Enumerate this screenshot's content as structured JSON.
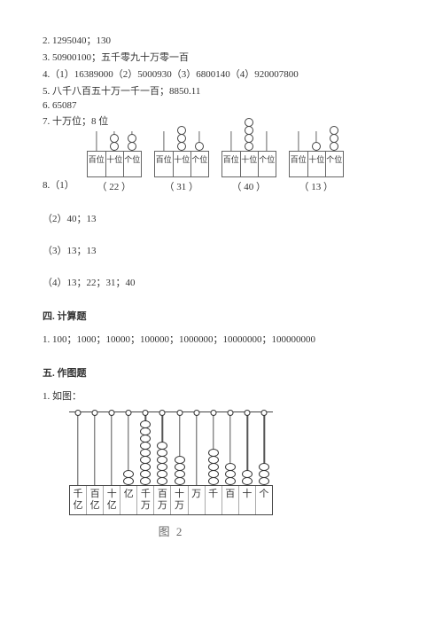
{
  "answers": {
    "l2": "2. 1295040；130",
    "l3": "3. 50900100；五千零九十万零一百",
    "l4": "4.（1）16389000（2）5000930（3）6800140（4）920007800",
    "l5": "5. 八千八百五十万一千一百；8850.11",
    "l6": "6. 65087",
    "l7": "7. 十万位；8 位",
    "l8_prefix": "8.（1）",
    "l8_sub2": "（2）40；13",
    "l8_sub3": "（3）13；13",
    "l8_sub4": "（4）13；22；31；40"
  },
  "abaci": [
    {
      "caption": "（ 22 ）",
      "cols": [
        {
          "label": "百位",
          "beads": 0
        },
        {
          "label": "十位",
          "beads": 2
        },
        {
          "label": "个位",
          "beads": 2
        }
      ]
    },
    {
      "caption": "（ 31 ）",
      "cols": [
        {
          "label": "百位",
          "beads": 0
        },
        {
          "label": "十位",
          "beads": 3
        },
        {
          "label": "个位",
          "beads": 1
        }
      ]
    },
    {
      "caption": "（ 40 ）",
      "cols": [
        {
          "label": "百位",
          "beads": 0
        },
        {
          "label": "十位",
          "beads": 4
        },
        {
          "label": "个位",
          "beads": 0
        }
      ]
    },
    {
      "caption": "（ 13 ）",
      "cols": [
        {
          "label": "百位",
          "beads": 0
        },
        {
          "label": "十位",
          "beads": 1
        },
        {
          "label": "个位",
          "beads": 3
        }
      ]
    }
  ],
  "section4": {
    "heading": "四. 计算题",
    "l1": "1. 100；1000；10000；100000；1000000；10000000；100000000"
  },
  "section5": {
    "heading": "五. 作图题",
    "l1": "1. 如图：",
    "fig_caption": "图 2",
    "big_abacus": {
      "labels": [
        "千亿",
        "百亿",
        "十亿",
        "亿",
        "千万",
        "百万",
        "十万",
        "万",
        "千",
        "百",
        "十",
        "个"
      ],
      "beads": [
        0,
        0,
        0,
        2,
        9,
        6,
        4,
        0,
        5,
        3,
        2,
        3
      ]
    }
  },
  "colors": {
    "text": "#333333",
    "border": "#666666",
    "bg": "#ffffff"
  }
}
